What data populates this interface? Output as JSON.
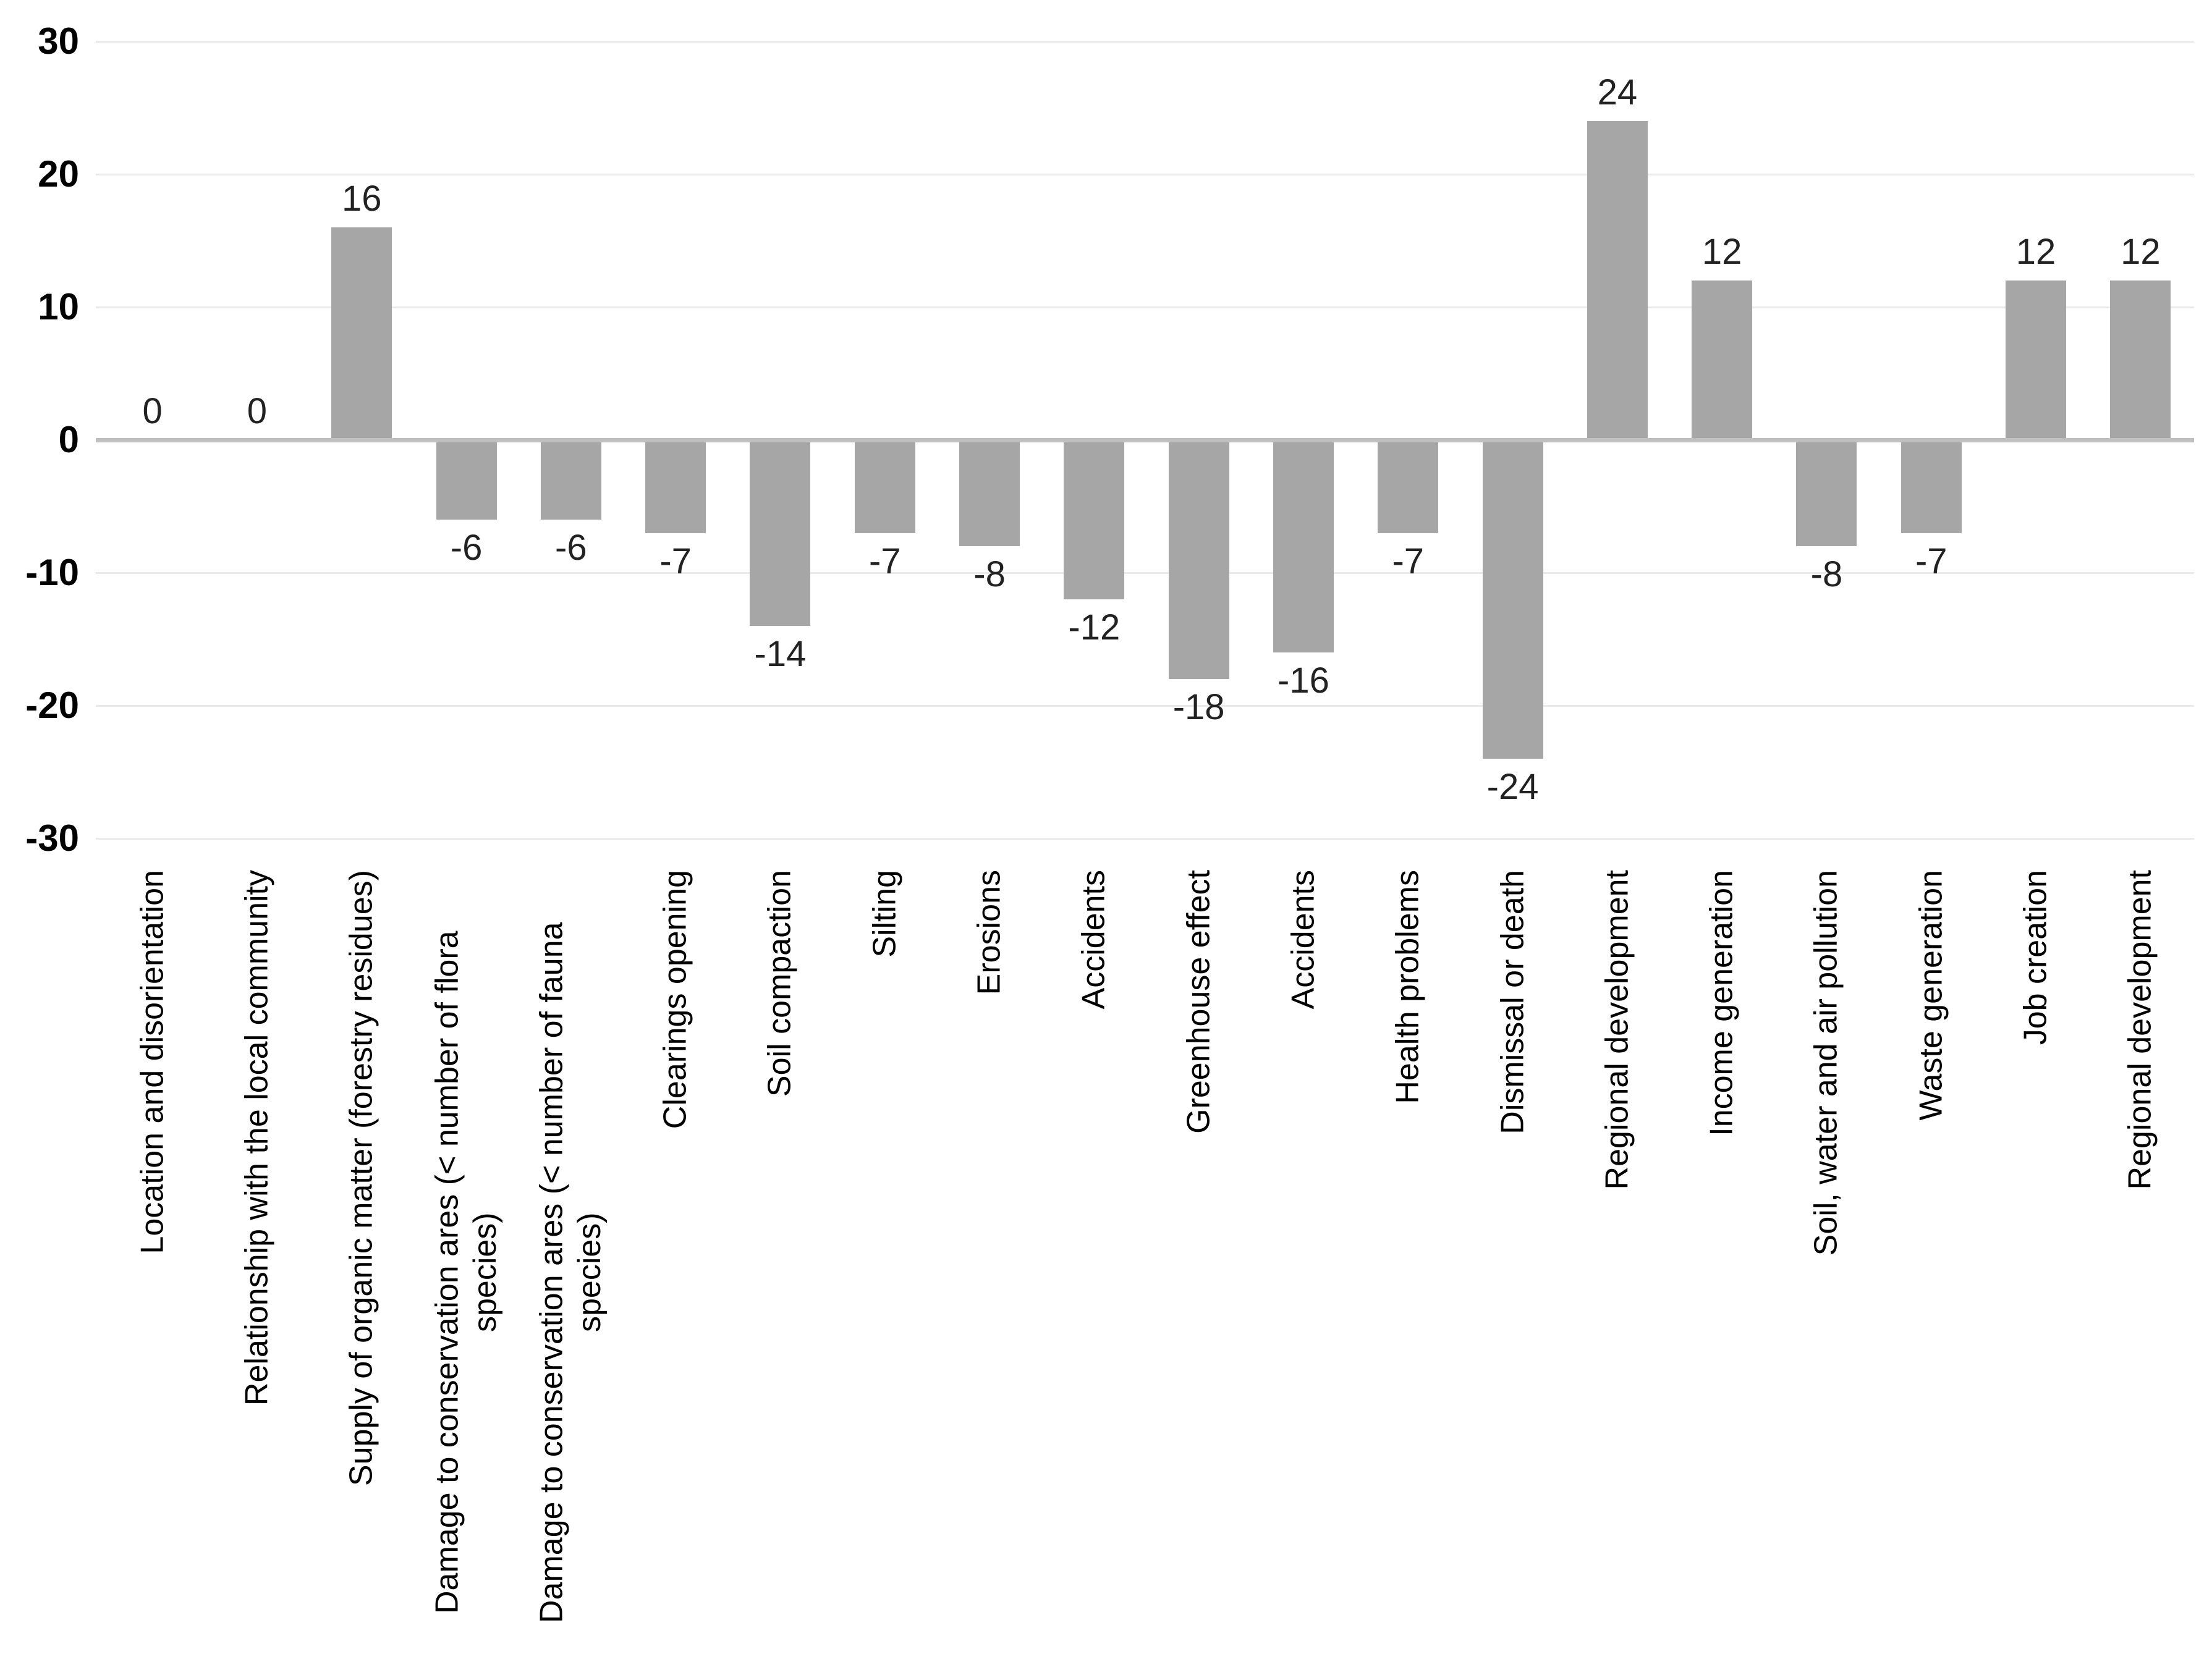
{
  "chart_data": {
    "type": "bar",
    "title": "",
    "xlabel": "",
    "ylabel": "",
    "ylim": [
      -30,
      30
    ],
    "yticks": [
      30,
      20,
      10,
      0,
      -10,
      -20,
      -30
    ],
    "grid": true,
    "legend": false,
    "data_labels": true,
    "categories": [
      "Location and disorientation",
      "Relationship with the local community",
      "Supply of organic matter (forestry residues)",
      "Damage to conservation ares (< number of flora species)",
      "Damage to conservation ares (< number of fauna species)",
      "Clearings opening",
      "Soil compaction",
      "Silting",
      "Erosions",
      "Accidents",
      "Greenhouse effect",
      "Accidents",
      "Health problems",
      "Dismissal or death",
      "Regional development",
      "Income generation",
      "Soil, water and air pollution",
      "Waste generation",
      "Job creation",
      "Regional development"
    ],
    "values": [
      0,
      0,
      16,
      -6,
      -6,
      -7,
      -14,
      -7,
      -8,
      -12,
      -18,
      -16,
      -7,
      -24,
      24,
      12,
      -8,
      -7,
      12,
      12
    ]
  },
  "colors": {
    "bar": "#a6a6a6",
    "zero_line": "#c0c0c0",
    "gridline": "#eaeaea",
    "tick_text": "#000000",
    "data_label_text": "#222222",
    "category_text": "#000000",
    "background": "#ffffff"
  }
}
